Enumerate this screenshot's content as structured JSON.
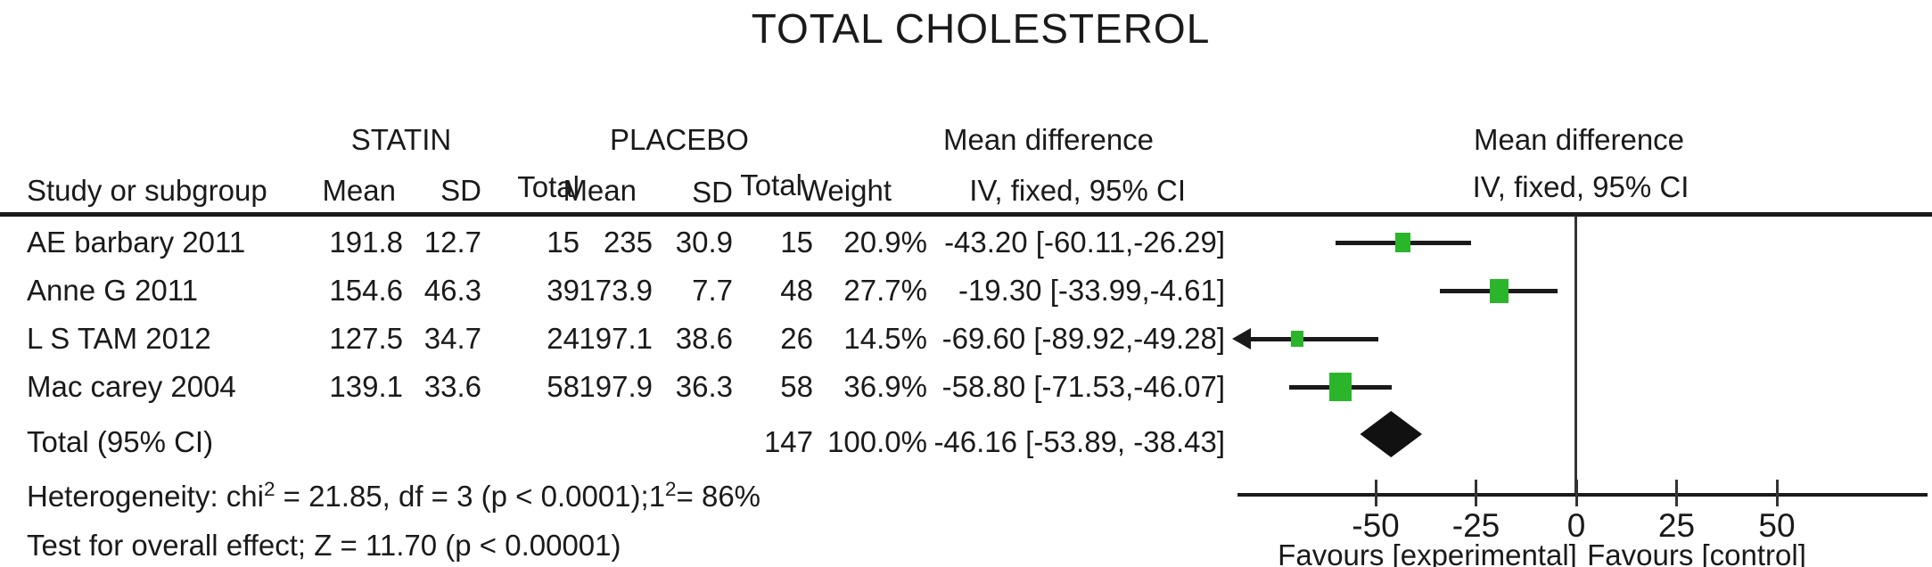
{
  "title": "TOTAL CHOLESTEROL",
  "colors": {
    "marker_green": "#2bb52b",
    "summary_black": "#111111",
    "line_black": "#1a1a1a"
  },
  "table": {
    "group_headers": {
      "statin": "STATIN",
      "placebo": "PLACEBO",
      "md_left": "Mean difference",
      "md_right": "Mean difference"
    },
    "col_headers": {
      "study": "Study or subgroup",
      "mean1": "Mean",
      "sd1": "SD",
      "total1": "Total",
      "mean2": "Mean",
      "sd2": "SD",
      "total2": "Total",
      "weight": "Weight",
      "iv_left": "IV, fixed, 95% CI",
      "iv_right": "IV, fixed, 95% CI"
    }
  },
  "footnotes": {
    "het_parts": [
      "Heterogeneity: chi",
      "2",
      " =  21.85, df = 3 (p < 0.0001);1",
      "2",
      "= 86%"
    ],
    "overall_effect": "Test for overall effect; Z = 11.70 (p < 0.00001)"
  },
  "chart_data": {
    "type": "scatter",
    "subtype": "forest-plot-meta-analysis",
    "title": "TOTAL CHOLESTEROL",
    "effect_measure": "Mean difference IV, fixed, 95% CI",
    "xlim": [
      -85,
      87
    ],
    "x_ticks": [
      -50,
      -25,
      0,
      25,
      50
    ],
    "x_axis_labels": [
      "Favours [experimental]",
      "Favours [control]"
    ],
    "grid": false,
    "studies": [
      {
        "cells": {
          "name": "AE barbary 2011",
          "mean1": "191.8",
          "sd1": "12.7",
          "total1": "15",
          "mean2": "235",
          "sd2": "30.9",
          "total2": "15",
          "weight": "20.9%",
          "ci": "-43.20 [-60.11,-26.29]"
        },
        "md": -43.2,
        "ci_lo": -60.11,
        "ci_hi": -26.29,
        "weight_pct": 20.9,
        "clip_left": false
      },
      {
        "cells": {
          "name": "Anne G 2011",
          "mean1": "154.6",
          "sd1": "46.3",
          "total1": "39",
          "mean2": "173.9",
          "sd2": "7.7",
          "total2": "48",
          "weight": "27.7%",
          "ci": "-19.30 [-33.99,-4.61]"
        },
        "md": -19.3,
        "ci_lo": -33.99,
        "ci_hi": -4.61,
        "weight_pct": 27.7,
        "clip_left": false
      },
      {
        "cells": {
          "name": "L S TAM 2012",
          "mean1": "127.5",
          "sd1": "34.7",
          "total1": "24",
          "mean2": "197.1",
          "sd2": "38.6",
          "total2": "26",
          "weight": "14.5%",
          "ci": "-69.60 [-89.92,-49.28]"
        },
        "md": -69.6,
        "ci_lo": -89.92,
        "ci_hi": -49.28,
        "weight_pct": 14.5,
        "clip_left": true
      },
      {
        "cells": {
          "name": "Mac carey 2004",
          "mean1": "139.1",
          "sd1": "33.6",
          "total1": "58",
          "mean2": "197.9",
          "sd2": "36.3",
          "total2": "58",
          "weight": "36.9%",
          "ci": "-58.80 [-71.53,-46.07]"
        },
        "md": -58.8,
        "ci_lo": -71.53,
        "ci_hi": -46.07,
        "weight_pct": 36.9,
        "clip_left": false
      }
    ],
    "total": {
      "label": "Total (95% CI)",
      "total2": "147",
      "weight": "100.0%",
      "ci_text": "-46.16 [-53.89, -38.43]",
      "md": -46.16,
      "ci_lo": -53.89,
      "ci_hi": -38.43
    }
  }
}
